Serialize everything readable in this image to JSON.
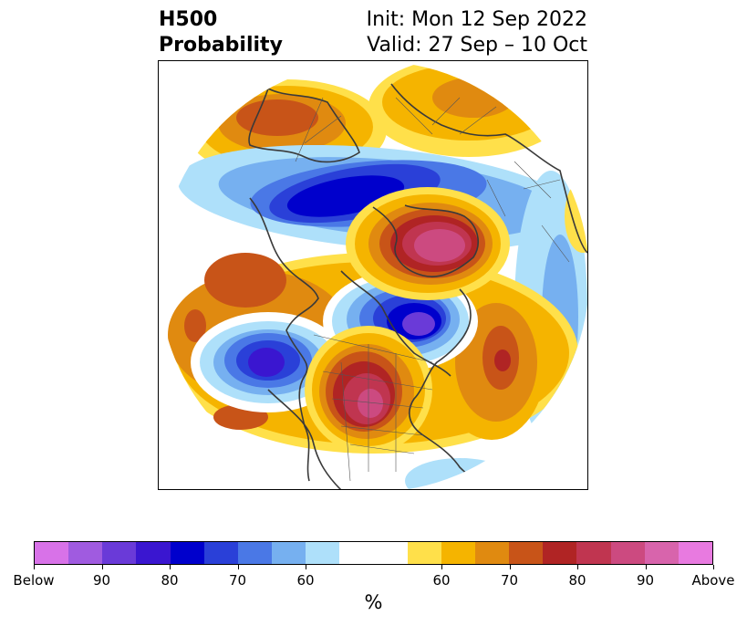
{
  "header": {
    "title_line1": "H500",
    "title_line2": "Probability",
    "init": "Init: Mon 12 Sep 2022",
    "valid": "Valid: 27 Sep – 10 Oct"
  },
  "colorbar": {
    "colors": [
      "#d872e8",
      "#a05be0",
      "#6a3ad8",
      "#3a16d0",
      "#0000cc",
      "#2a40d8",
      "#4a78e6",
      "#76b0f0",
      "#aee0fa",
      "#ffffff",
      "#ffe04a",
      "#f5b400",
      "#e08a10",
      "#c85418",
      "#b02424",
      "#c03550",
      "#cc4a80",
      "#d864ac",
      "#e87ae0"
    ],
    "tick_labels": [
      "Below",
      "90",
      "80",
      "70",
      "60",
      "60",
      "70",
      "80",
      "90",
      "Above"
    ],
    "unit_label": "%"
  }
}
